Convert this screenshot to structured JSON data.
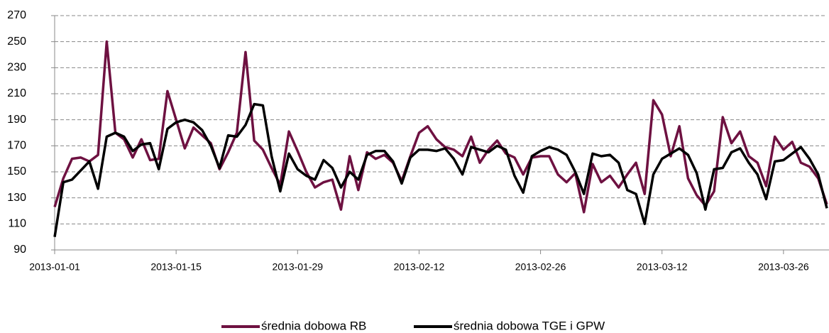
{
  "chart_data": {
    "type": "line",
    "x": [
      "2013-01-01",
      "2013-01-02",
      "2013-01-03",
      "2013-01-04",
      "2013-01-05",
      "2013-01-06",
      "2013-01-07",
      "2013-01-08",
      "2013-01-09",
      "2013-01-10",
      "2013-01-11",
      "2013-01-12",
      "2013-01-13",
      "2013-01-14",
      "2013-01-15",
      "2013-01-16",
      "2013-01-17",
      "2013-01-18",
      "2013-01-19",
      "2013-01-20",
      "2013-01-21",
      "2013-01-22",
      "2013-01-23",
      "2013-01-24",
      "2013-01-25",
      "2013-01-26",
      "2013-01-27",
      "2013-01-28",
      "2013-01-29",
      "2013-01-30",
      "2013-01-31",
      "2013-02-01",
      "2013-02-02",
      "2013-02-03",
      "2013-02-04",
      "2013-02-05",
      "2013-02-06",
      "2013-02-07",
      "2013-02-08",
      "2013-02-09",
      "2013-02-10",
      "2013-02-11",
      "2013-02-12",
      "2013-02-13",
      "2013-02-14",
      "2013-02-15",
      "2013-02-16",
      "2013-02-17",
      "2013-02-18",
      "2013-02-19",
      "2013-02-20",
      "2013-02-21",
      "2013-02-22",
      "2013-02-23",
      "2013-02-24",
      "2013-02-25",
      "2013-02-26",
      "2013-02-27",
      "2013-02-28",
      "2013-03-01",
      "2013-03-02",
      "2013-03-03",
      "2013-03-04",
      "2013-03-05",
      "2013-03-06",
      "2013-03-07",
      "2013-03-08",
      "2013-03-09",
      "2013-03-10",
      "2013-03-11",
      "2013-03-12",
      "2013-03-13",
      "2013-03-14",
      "2013-03-15",
      "2013-03-16",
      "2013-03-17",
      "2013-03-18",
      "2013-03-19",
      "2013-03-20",
      "2013-03-21",
      "2013-03-22",
      "2013-03-23",
      "2013-03-24",
      "2013-03-25",
      "2013-03-26",
      "2013-03-27",
      "2013-03-28",
      "2013-03-29",
      "2013-03-30",
      "2013-03-31"
    ],
    "series": [
      {
        "name": "średnia dobowa RB",
        "color": "#6e1141",
        "values": [
          123,
          145,
          160,
          161,
          158,
          163,
          250,
          180,
          175,
          161,
          175,
          159,
          160,
          212,
          190,
          168,
          184,
          178,
          172,
          152,
          165,
          180,
          242,
          174,
          167,
          153,
          140,
          181,
          166,
          150,
          138,
          142,
          144,
          121,
          162,
          136,
          165,
          160,
          163,
          157,
          143,
          162,
          180,
          185,
          175,
          169,
          167,
          162,
          177,
          157,
          167,
          174,
          164,
          161,
          148,
          161,
          162,
          162,
          148,
          142,
          149,
          119,
          156,
          142,
          147,
          138,
          148,
          157,
          133,
          205,
          194,
          162,
          185,
          145,
          132,
          124,
          135,
          192,
          172,
          181,
          162,
          157,
          139,
          177,
          167,
          173,
          157,
          154,
          145,
          125
        ]
      },
      {
        "name": "średnia dobowa TGE i GPW",
        "color": "#000000",
        "values": [
          100,
          142,
          144,
          151,
          158,
          137,
          177,
          180,
          177,
          166,
          171,
          172,
          152,
          183,
          188,
          190,
          188,
          182,
          170,
          153,
          178,
          177,
          186,
          202,
          201,
          162,
          135,
          164,
          152,
          147,
          144,
          159,
          153,
          138,
          150,
          144,
          163,
          166,
          166,
          158,
          141,
          161,
          167,
          167,
          166,
          168,
          160,
          148,
          169,
          167,
          165,
          170,
          167,
          147,
          134,
          162,
          166,
          169,
          167,
          163,
          150,
          133,
          164,
          162,
          163,
          157,
          136,
          133,
          110,
          148,
          160,
          164,
          168,
          163,
          149,
          121,
          152,
          153,
          165,
          168,
          157,
          148,
          129,
          158,
          159,
          164,
          169,
          160,
          148,
          122
        ]
      }
    ],
    "xlim": [
      "2013-01-01",
      "2013-03-31"
    ],
    "xticks": [
      "2013-01-01",
      "2013-01-15",
      "2013-01-29",
      "2013-02-12",
      "2013-02-26",
      "2013-03-12",
      "2013-03-26"
    ],
    "ylim": [
      90,
      270
    ],
    "yticks": [
      90,
      110,
      130,
      150,
      170,
      190,
      210,
      230,
      250,
      270
    ],
    "grid": true,
    "legend": "bottom"
  }
}
